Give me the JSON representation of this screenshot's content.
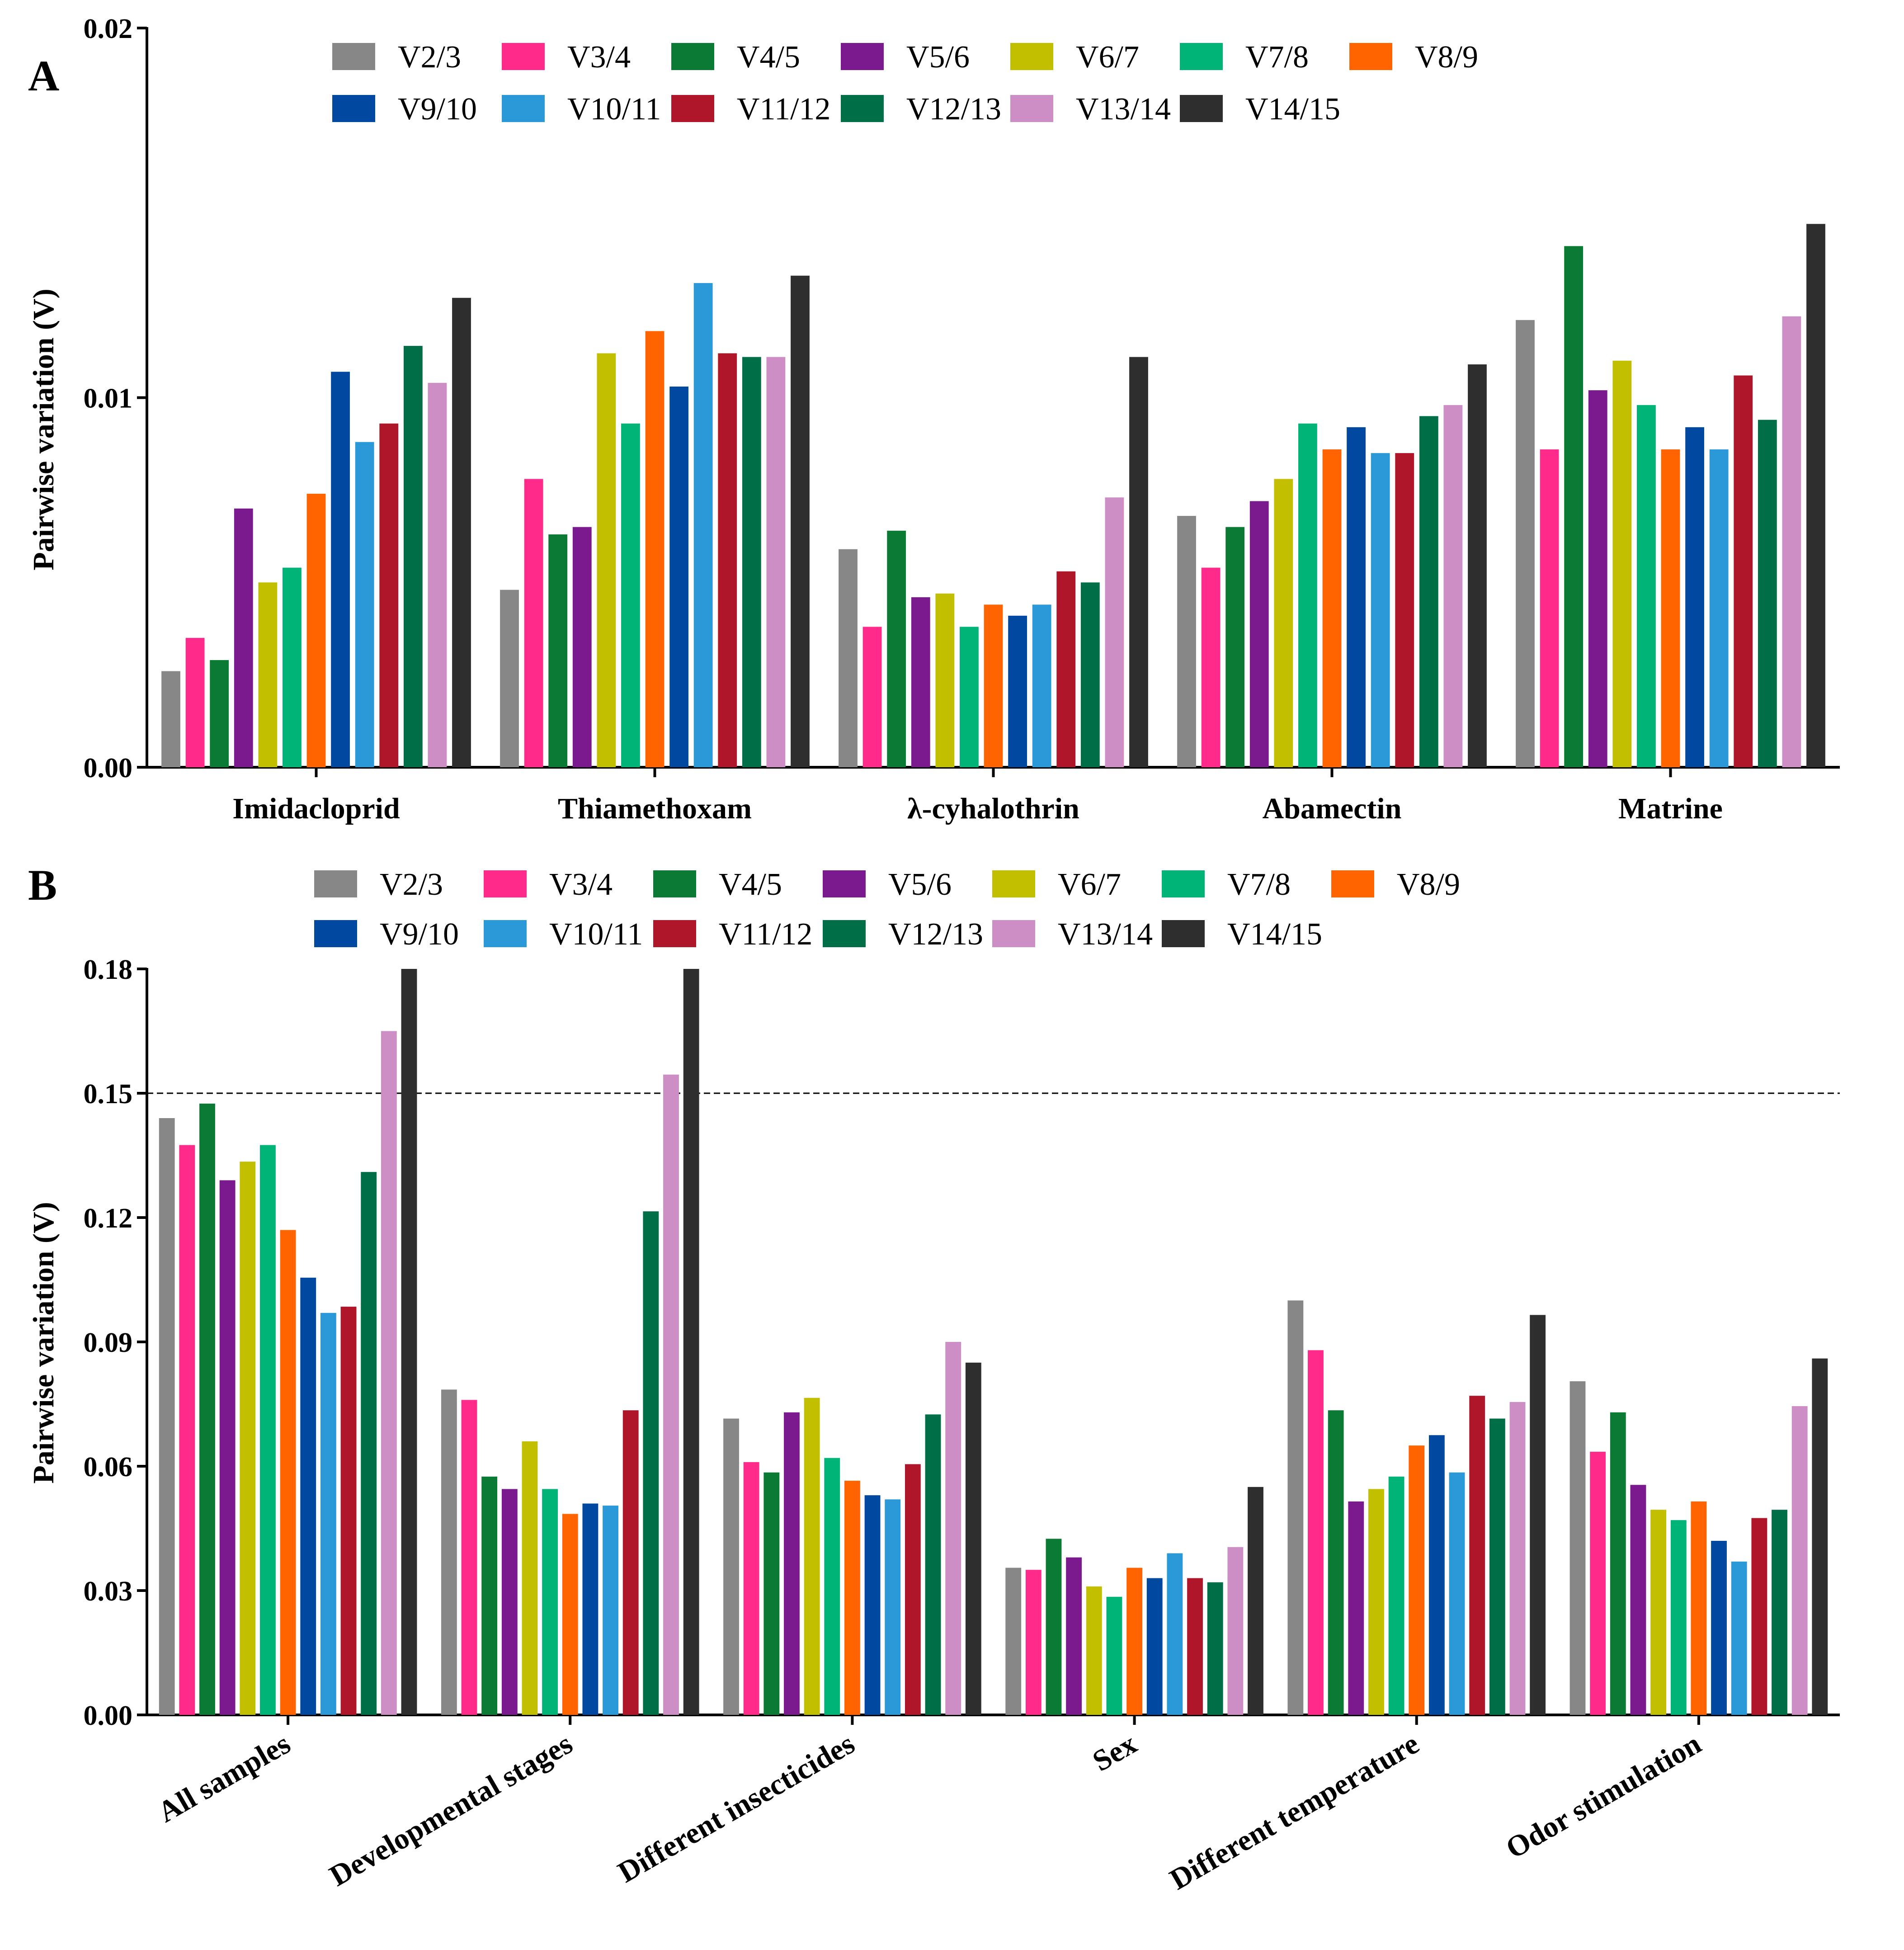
{
  "series_names": [
    "V2/3",
    "V3/4",
    "V4/5",
    "V5/6",
    "V6/7",
    "V7/8",
    "V8/9",
    "V9/10",
    "V10/11",
    "V11/12",
    "V12/13",
    "V13/14",
    "V14/15"
  ],
  "colors": [
    "#878787",
    "#ff2a8a",
    "#0a7a34",
    "#7a1a8e",
    "#c2be00",
    "#00b478",
    "#ff6400",
    "#0048a0",
    "#2b98d8",
    "#b0162a",
    "#006e46",
    "#cc8ec4",
    "#2e2e2e"
  ],
  "chart_data": [
    {
      "panel": "A",
      "type": "bar",
      "ylabel": "Pairwise variation (V)",
      "ylim": [
        0,
        0.02
      ],
      "yticks": [
        "0.00",
        "0.01",
        "0.02"
      ],
      "categories": [
        "Imidacloprid",
        "Thiamethoxam",
        "λ-cyhalothrin",
        "Abamectin",
        "Matrine"
      ],
      "series": [
        {
          "name": "V2/3",
          "values": [
            0.0026,
            0.0048,
            0.0059,
            0.0068,
            0.0121
          ]
        },
        {
          "name": "V3/4",
          "values": [
            0.0035,
            0.0078,
            0.0038,
            0.0054,
            0.0086
          ]
        },
        {
          "name": "V4/5",
          "values": [
            0.0029,
            0.0063,
            0.0064,
            0.0065,
            0.0141
          ]
        },
        {
          "name": "V5/6",
          "values": [
            0.007,
            0.0065,
            0.0046,
            0.0072,
            0.0102
          ]
        },
        {
          "name": "V6/7",
          "values": [
            0.005,
            0.0112,
            0.0047,
            0.0078,
            0.011
          ]
        },
        {
          "name": "V7/8",
          "values": [
            0.0054,
            0.0093,
            0.0038,
            0.0093,
            0.0098
          ]
        },
        {
          "name": "V8/9",
          "values": [
            0.0074,
            0.0118,
            0.0044,
            0.0086,
            0.0086
          ]
        },
        {
          "name": "V9/10",
          "values": [
            0.0107,
            0.0103,
            0.0041,
            0.0092,
            0.0092
          ]
        },
        {
          "name": "V10/11",
          "values": [
            0.0088,
            0.0131,
            0.0044,
            0.0085,
            0.0086
          ]
        },
        {
          "name": "V11/12",
          "values": [
            0.0093,
            0.0112,
            0.0053,
            0.0085,
            0.0106
          ]
        },
        {
          "name": "V12/13",
          "values": [
            0.0114,
            0.0111,
            0.005,
            0.0095,
            0.0094
          ]
        },
        {
          "name": "V13/14",
          "values": [
            0.0104,
            0.0111,
            0.0073,
            0.0098,
            0.0122
          ]
        },
        {
          "name": "V14/15",
          "values": [
            0.0127,
            0.0133,
            0.0111,
            0.0109,
            0.0147
          ]
        }
      ]
    },
    {
      "panel": "B",
      "type": "bar",
      "ylabel": "Pairwise variation (V)",
      "ylim": [
        0,
        0.18
      ],
      "yticks": [
        "0.00",
        "0.03",
        "0.06",
        "0.09",
        "0.12",
        "0.15",
        "0.18"
      ],
      "threshold": 0.15,
      "categories": [
        "All samples",
        "Developmental stages",
        "Different insecticides",
        "Sex",
        "Different temperature",
        "Odor stimulation"
      ],
      "series": [
        {
          "name": "V2/3",
          "values": [
            0.144,
            0.0785,
            0.0715,
            0.0355,
            0.1,
            0.0805
          ]
        },
        {
          "name": "V3/4",
          "values": [
            0.1375,
            0.076,
            0.061,
            0.035,
            0.088,
            0.0635
          ]
        },
        {
          "name": "V4/5",
          "values": [
            0.1475,
            0.0575,
            0.0585,
            0.0425,
            0.0735,
            0.073
          ]
        },
        {
          "name": "V5/6",
          "values": [
            0.129,
            0.0545,
            0.073,
            0.038,
            0.0515,
            0.0555
          ]
        },
        {
          "name": "V6/7",
          "values": [
            0.1335,
            0.066,
            0.0765,
            0.031,
            0.0545,
            0.0495
          ]
        },
        {
          "name": "V7/8",
          "values": [
            0.1375,
            0.0545,
            0.062,
            0.0285,
            0.0575,
            0.047
          ]
        },
        {
          "name": "V8/9",
          "values": [
            0.117,
            0.0485,
            0.0565,
            0.0355,
            0.065,
            0.0515
          ]
        },
        {
          "name": "V9/10",
          "values": [
            0.1055,
            0.051,
            0.053,
            0.033,
            0.0675,
            0.042
          ]
        },
        {
          "name": "V10/11",
          "values": [
            0.097,
            0.0505,
            0.052,
            0.039,
            0.0585,
            0.037
          ]
        },
        {
          "name": "V11/12",
          "values": [
            0.0985,
            0.0735,
            0.0605,
            0.033,
            0.077,
            0.0475
          ]
        },
        {
          "name": "V12/13",
          "values": [
            0.131,
            0.1215,
            0.0725,
            0.032,
            0.0715,
            0.0495
          ]
        },
        {
          "name": "V13/14",
          "values": [
            0.165,
            0.1545,
            0.09,
            0.0405,
            0.0755,
            0.0745
          ]
        },
        {
          "name": "V14/15",
          "values": [
            0.18,
            0.18,
            0.085,
            0.055,
            0.0965,
            0.086
          ]
        }
      ]
    }
  ]
}
